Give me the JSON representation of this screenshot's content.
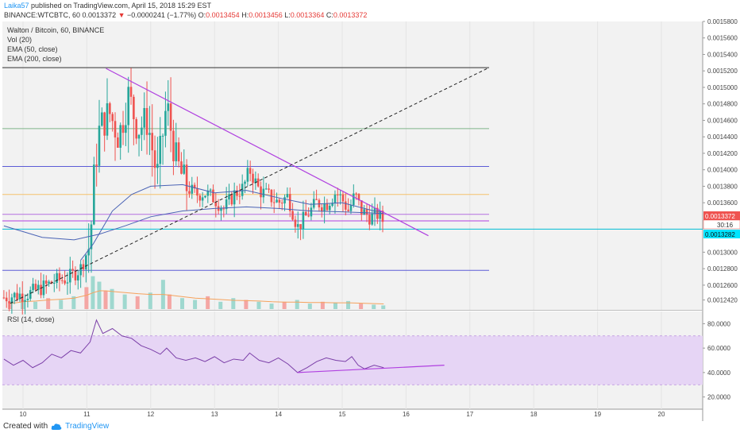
{
  "header": {
    "user": "Laika57",
    "published": "published on TradingView.com, April 15, 2018 15:29 EST",
    "symbol": "BINANCE:WTCBTC, 60",
    "last": "0.0013372",
    "arrow": "▼",
    "change": "−0.0000241 (−1.77%)",
    "o_label": "O:",
    "o": "0.0013454",
    "h_label": "H:",
    "h": "0.0013456",
    "l_label": "L:",
    "l": "0.0013364",
    "c_label": "C:",
    "c": "0.0013372"
  },
  "legend": {
    "title": "Walton / Bitcoin, 60, BINANCE",
    "vol": "Vol (20)",
    "ema50": "EMA (50, close)",
    "ema200": "EMA (200, close)"
  },
  "rsi_legend": "RSI (14, close)",
  "price_tags": {
    "last": "0.0013372",
    "countdown": "30:16",
    "line": "0.0013282"
  },
  "footer": {
    "created": "Created with",
    "brand": "TradingView"
  },
  "colors": {
    "up": "#26a69a",
    "down": "#ef5350",
    "trend": "#b040e0",
    "support": "#5c5cd6",
    "cyan": "#00bcd4",
    "orange_line": "#f5c16c",
    "green_line": "#7fb58a",
    "ema": "#4a63b5"
  },
  "chart_data": [
    {
      "type": "candlestick",
      "title": "Walton / Bitcoin, 60, BINANCE",
      "x_ticks": [
        "10",
        "11",
        "12",
        "13",
        "14",
        "15",
        "16",
        "17",
        "18",
        "19",
        "20"
      ],
      "y_ticks": [
        "0.0015800",
        "0.0015600",
        "0.0015400",
        "0.0015200",
        "0.0015000",
        "0.0014800",
        "0.0014600",
        "0.0014400",
        "0.0014200",
        "0.0014000",
        "0.0013800",
        "0.0013600",
        "0.0013372",
        "0.0013282",
        "0.0013000",
        "0.0012800",
        "0.0012600",
        "0.0012420"
      ],
      "ylim": [
        0.00123,
        0.00158
      ],
      "price_path": [
        [
          9.7,
          0.001245
        ],
        [
          9.9,
          0.001248
        ],
        [
          10.1,
          0.00125
        ],
        [
          10.3,
          0.001257
        ],
        [
          10.5,
          0.001265
        ],
        [
          10.7,
          0.001268
        ],
        [
          10.9,
          0.00128
        ],
        [
          11.05,
          0.00131
        ],
        [
          11.12,
          0.0014
        ],
        [
          11.2,
          0.00145
        ],
        [
          11.35,
          0.00147
        ],
        [
          11.5,
          0.00144
        ],
        [
          11.65,
          0.00149
        ],
        [
          11.8,
          0.00145
        ],
        [
          11.95,
          0.00146
        ],
        [
          12.1,
          0.00139
        ],
        [
          12.25,
          0.00148
        ],
        [
          12.4,
          0.00141
        ],
        [
          12.55,
          0.00138
        ],
        [
          12.7,
          0.00137
        ],
        [
          12.85,
          0.001372
        ],
        [
          13.0,
          0.001365
        ],
        [
          13.15,
          0.001352
        ],
        [
          13.3,
          0.00137
        ],
        [
          13.45,
          0.001378
        ],
        [
          13.55,
          0.0014
        ],
        [
          13.7,
          0.001375
        ],
        [
          13.85,
          0.001368
        ],
        [
          14.0,
          0.00136
        ],
        [
          14.15,
          0.001368
        ],
        [
          14.3,
          0.00133
        ],
        [
          14.45,
          0.001345
        ],
        [
          14.6,
          0.00136
        ],
        [
          14.75,
          0.001358
        ],
        [
          14.9,
          0.001373
        ],
        [
          15.0,
          0.001364
        ],
        [
          15.1,
          0.00135
        ],
        [
          15.2,
          0.00137
        ],
        [
          15.3,
          0.00135
        ],
        [
          15.45,
          0.001342
        ],
        [
          15.55,
          0.001346
        ],
        [
          15.65,
          0.0013372
        ]
      ],
      "ema50": [
        [
          10.9,
          0.00129
        ],
        [
          11.1,
          0.00131
        ],
        [
          11.4,
          0.00135
        ],
        [
          11.7,
          0.00137
        ],
        [
          12.0,
          0.00138
        ],
        [
          12.5,
          0.001382
        ],
        [
          13.0,
          0.001372
        ],
        [
          13.5,
          0.001375
        ],
        [
          14.0,
          0.001366
        ],
        [
          14.5,
          0.001358
        ],
        [
          15.0,
          0.00136
        ],
        [
          15.5,
          0.00135
        ],
        [
          15.65,
          0.001349
        ]
      ],
      "ema200": [
        [
          9.7,
          0.001332
        ],
        [
          10.3,
          0.001318
        ],
        [
          10.8,
          0.001315
        ],
        [
          11.2,
          0.001322
        ],
        [
          11.6,
          0.001332
        ],
        [
          12.0,
          0.001343
        ],
        [
          12.5,
          0.00135
        ],
        [
          13.0,
          0.001353
        ],
        [
          13.5,
          0.001355
        ],
        [
          14.0,
          0.001353
        ],
        [
          14.5,
          0.00135
        ],
        [
          15.0,
          0.001349
        ],
        [
          15.65,
          0.001347
        ]
      ],
      "drawings": {
        "resistance_line": [
          [
            11.3,
            0.001523
          ],
          [
            16.35,
            0.00132
          ]
        ],
        "dashed_trend": [
          [
            9.8,
            0.001238
          ],
          [
            17.3,
            0.001524
          ]
        ],
        "horizontal_levels": [
          0.001524,
          0.00145,
          0.001404,
          0.00137,
          0.001346,
          0.001338,
          0.001328,
          0.001278
        ]
      },
      "volume": {
        "x": [
          9.8,
          10.0,
          10.2,
          10.4,
          10.6,
          10.8,
          11.0,
          11.1,
          11.2,
          11.3,
          11.4,
          11.6,
          11.8,
          12.0,
          12.2,
          12.3,
          12.5,
          12.7,
          12.9,
          13.1,
          13.3,
          13.5,
          13.7,
          13.9,
          14.1,
          14.3,
          14.5,
          14.7,
          14.9,
          15.1,
          15.3,
          15.5,
          15.65
        ],
        "relative": [
          0.15,
          0.25,
          0.2,
          0.3,
          0.25,
          0.35,
          0.6,
          0.9,
          0.75,
          0.5,
          0.55,
          0.4,
          0.35,
          0.45,
          0.8,
          0.4,
          0.3,
          0.25,
          0.35,
          0.2,
          0.3,
          0.25,
          0.2,
          0.15,
          0.2,
          0.25,
          0.15,
          0.2,
          0.18,
          0.22,
          0.15,
          0.12,
          0.1
        ],
        "ma_level": [
          0.15,
          0.2,
          0.22,
          0.25,
          0.27,
          0.3,
          0.38,
          0.45,
          0.5,
          0.5,
          0.48,
          0.45,
          0.42,
          0.4,
          0.4,
          0.38,
          0.34,
          0.3,
          0.28,
          0.26,
          0.24,
          0.23,
          0.22,
          0.2,
          0.19,
          0.19,
          0.18,
          0.18,
          0.17,
          0.17,
          0.16,
          0.15,
          0.14
        ]
      }
    },
    {
      "type": "line",
      "title": "RSI (14, close)",
      "y_ticks": [
        "80.0000",
        "60.0000",
        "40.0000",
        "20.0000"
      ],
      "ylim": [
        10,
        90
      ],
      "band": [
        30,
        70
      ],
      "series": [
        {
          "values": [
            [
              9.7,
              51
            ],
            [
              9.85,
              46
            ],
            [
              10.0,
              50
            ],
            [
              10.15,
              44
            ],
            [
              10.3,
              48
            ],
            [
              10.45,
              55
            ],
            [
              10.6,
              52
            ],
            [
              10.75,
              58
            ],
            [
              10.9,
              56
            ],
            [
              11.05,
              65
            ],
            [
              11.15,
              83
            ],
            [
              11.25,
              72
            ],
            [
              11.4,
              76
            ],
            [
              11.55,
              70
            ],
            [
              11.7,
              68
            ],
            [
              11.85,
              62
            ],
            [
              12.0,
              59
            ],
            [
              12.15,
              55
            ],
            [
              12.25,
              60
            ],
            [
              12.4,
              52
            ],
            [
              12.55,
              50
            ],
            [
              12.7,
              52
            ],
            [
              12.85,
              49
            ],
            [
              13.0,
              53
            ],
            [
              13.15,
              48
            ],
            [
              13.3,
              51
            ],
            [
              13.45,
              50
            ],
            [
              13.55,
              56
            ],
            [
              13.7,
              50
            ],
            [
              13.85,
              48
            ],
            [
              14.0,
              52
            ],
            [
              14.15,
              47
            ],
            [
              14.3,
              40
            ],
            [
              14.45,
              44
            ],
            [
              14.6,
              49
            ],
            [
              14.75,
              52
            ],
            [
              14.9,
              50
            ],
            [
              15.05,
              49
            ],
            [
              15.15,
              53
            ],
            [
              15.25,
              46
            ],
            [
              15.35,
              43
            ],
            [
              15.5,
              46
            ],
            [
              15.65,
              44
            ]
          ]
        }
      ],
      "trendline": [
        [
          14.3,
          40
        ],
        [
          16.6,
          46
        ]
      ]
    }
  ]
}
